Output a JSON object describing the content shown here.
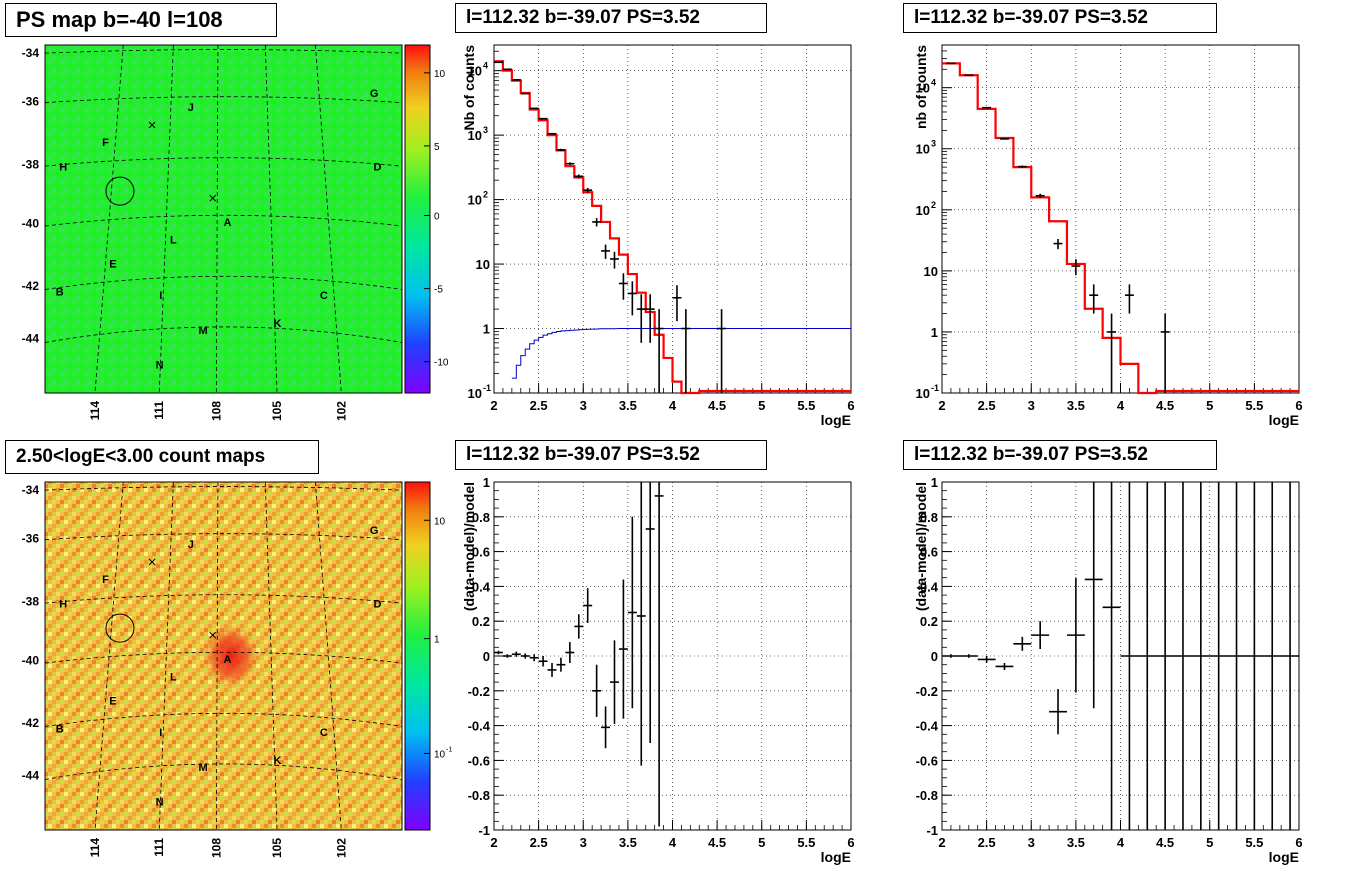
{
  "panel_titles": {
    "map_top": "PS map b=-40 l=108",
    "map_bottom": "2.50<logE<3.00 count maps",
    "spec1": "l=112.32 b=-39.07 PS=3.52",
    "spec2": "l=112.32 b=-39.07 PS=3.52",
    "res1": "l=112.32 b=-39.07 PS=3.52",
    "res2": "l=112.32 b=-39.07 PS=3.52"
  },
  "map_axes": {
    "lat_ticks": [
      "-34",
      "-36",
      "-38",
      "-40",
      "-42",
      "-44"
    ],
    "lon_ticks": [
      "114",
      "111",
      "108",
      "105",
      "102"
    ]
  },
  "source_labels": [
    "A",
    "B",
    "C",
    "D",
    "E",
    "F",
    "G",
    "H",
    "I",
    "J",
    "K",
    "L",
    "M",
    "N"
  ],
  "colorbars": {
    "top_ticks": [
      "10",
      "5",
      "0",
      "-5",
      "-10"
    ],
    "bottom_ticks": [
      "10",
      "1",
      "10",
      "-1"
    ]
  },
  "colors": {
    "ps_map_background": "#22f030",
    "count_map_background": "#f0c040",
    "model_line": "#ff0000",
    "acceptance_line": "#0000cc",
    "data_points": "#000000"
  },
  "chart_data": [
    {
      "id": "spec1",
      "type": "line",
      "title": "l=112.32 b=-39.07 PS=3.52",
      "xlabel": "logE",
      "ylabel": "Nb of counts",
      "xlim": [
        2,
        6
      ],
      "ylim": [
        0.1,
        25000
      ],
      "ylog": true,
      "grid": true,
      "xticks": [
        "2",
        "2.5",
        "3",
        "3.5",
        "4",
        "4.5",
        "5",
        "5.5",
        "6"
      ],
      "yticks": [
        {
          "v": 0.1,
          "t": "10",
          "e": "-1"
        },
        {
          "v": 1,
          "t": "1",
          "e": ""
        },
        {
          "v": 10,
          "t": "10",
          "e": ""
        },
        {
          "v": 100,
          "t": "10",
          "e": "2"
        },
        {
          "v": 1000,
          "t": "10",
          "e": "3"
        },
        {
          "v": 10000,
          "t": "10",
          "e": "4"
        }
      ],
      "series": [
        {
          "role": "model",
          "step_width": 0.1,
          "x": [
            2.0,
            2.1,
            2.2,
            2.3,
            2.4,
            2.5,
            2.6,
            2.7,
            2.8,
            2.9,
            3.0,
            3.1,
            3.2,
            3.3,
            3.4,
            3.5,
            3.6,
            3.7,
            3.8,
            3.9,
            4.0,
            4.1,
            4.2
          ],
          "y": [
            14000,
            10000,
            7000,
            4500,
            2500,
            1700,
            1000,
            580,
            330,
            220,
            130,
            80,
            45,
            25,
            14,
            7,
            3.6,
            1.8,
            0.8,
            0.35,
            0.15,
            0.1,
            0.1
          ]
        },
        {
          "role": "acceptance",
          "step_width": 0.05,
          "x": [
            2.2,
            2.25,
            2.3,
            2.35,
            2.4,
            2.45,
            2.5,
            2.55,
            2.6,
            2.65,
            2.7,
            2.75,
            2.8,
            2.85,
            2.9,
            2.95,
            3.0,
            3.1,
            3.2,
            3.3,
            3.4,
            3.5,
            3.6,
            3.8,
            4.0,
            4.5,
            5.0,
            5.5
          ],
          "y": [
            0.17,
            0.27,
            0.38,
            0.48,
            0.58,
            0.66,
            0.73,
            0.79,
            0.83,
            0.87,
            0.9,
            0.92,
            0.93,
            0.94,
            0.95,
            0.96,
            0.97,
            0.98,
            0.99,
            0.99,
            1,
            1,
            1,
            1,
            1,
            1,
            1,
            1
          ]
        },
        {
          "role": "data",
          "x": [
            2.05,
            2.15,
            2.25,
            2.35,
            2.45,
            2.55,
            2.65,
            2.75,
            2.85,
            2.95,
            3.05,
            3.15,
            3.25,
            3.35,
            3.45,
            3.55,
            3.65,
            3.75,
            3.85,
            4.05,
            4.15,
            4.55
          ],
          "y": [
            13500,
            10500,
            7200,
            4400,
            2600,
            1800,
            1050,
            590,
            360,
            230,
            140,
            45,
            16,
            12,
            5,
            3.5,
            2,
            2,
            1,
            3,
            1,
            1
          ],
          "yerr": [
            120,
            100,
            85,
            66,
            51,
            42,
            32,
            24,
            19,
            15,
            12,
            6.7,
            4,
            3.5,
            2.2,
            1.9,
            1.4,
            1.4,
            1,
            1.7,
            1,
            1
          ]
        }
      ]
    },
    {
      "id": "spec2",
      "type": "line",
      "title": "l=112.32 b=-39.07 PS=3.52",
      "xlabel": "logE",
      "ylabel": "nb of counts",
      "xlim": [
        2,
        6
      ],
      "ylim": [
        0.1,
        50000
      ],
      "ylog": true,
      "grid": true,
      "xticks": [
        "2",
        "2.5",
        "3",
        "3.5",
        "4",
        "4.5",
        "5",
        "5.5",
        "6"
      ],
      "yticks": [
        {
          "v": 0.1,
          "t": "10",
          "e": "-1"
        },
        {
          "v": 1,
          "t": "1",
          "e": ""
        },
        {
          "v": 10,
          "t": "10",
          "e": ""
        },
        {
          "v": 100,
          "t": "10",
          "e": "2"
        },
        {
          "v": 1000,
          "t": "10",
          "e": "3"
        },
        {
          "v": 10000,
          "t": "10",
          "e": "4"
        }
      ],
      "series": [
        {
          "role": "model",
          "step_width": 0.2,
          "x": [
            2.0,
            2.2,
            2.4,
            2.6,
            2.8,
            3.0,
            3.2,
            3.4,
            3.6,
            3.8,
            4.0,
            4.2
          ],
          "y": [
            25000,
            16000,
            4500,
            1500,
            500,
            160,
            65,
            13,
            2.4,
            0.8,
            0.3,
            0.1
          ]
        },
        {
          "role": "data",
          "x": [
            2.1,
            2.3,
            2.5,
            2.7,
            2.9,
            3.1,
            3.3,
            3.5,
            3.7,
            3.9,
            4.1,
            4.5
          ],
          "y": [
            25000,
            16000,
            4700,
            1450,
            510,
            170,
            28,
            12,
            4,
            1,
            4,
            1
          ],
          "yerr": [
            160,
            126,
            69,
            38,
            23,
            13,
            5.3,
            3.5,
            2,
            1,
            2,
            1
          ]
        }
      ]
    },
    {
      "id": "res1",
      "type": "scatter",
      "title": "l=112.32 b=-39.07 PS=3.52",
      "xlabel": "logE",
      "ylabel": "(data-model)/model",
      "xlim": [
        2,
        6
      ],
      "ylim": [
        -1,
        1
      ],
      "ylog": false,
      "grid": true,
      "xticks": [
        "2",
        "2.5",
        "3",
        "3.5",
        "4",
        "4.5",
        "5",
        "5.5",
        "6"
      ],
      "yticks_text": [
        "-1",
        "-0.8",
        "-0.6",
        "-0.4",
        "-0.2",
        "0",
        "0.2",
        "0.4",
        "0.6",
        "0.8",
        "1"
      ],
      "series": [
        {
          "role": "data",
          "half_width": 0.05,
          "x": [
            2.05,
            2.15,
            2.25,
            2.35,
            2.45,
            2.55,
            2.65,
            2.75,
            2.85,
            2.95,
            3.05,
            3.15,
            3.25,
            3.35,
            3.45,
            3.55,
            3.65,
            3.75,
            3.85
          ],
          "y": [
            0.02,
            0.0,
            0.01,
            0.0,
            -0.01,
            -0.03,
            -0.08,
            -0.05,
            0.02,
            0.17,
            0.29,
            -0.2,
            -0.41,
            -0.15,
            0.04,
            0.25,
            0.23,
            0.73,
            0.92
          ],
          "yerr": [
            0.01,
            0.01,
            0.015,
            0.015,
            0.02,
            0.03,
            0.04,
            0.04,
            0.06,
            0.07,
            0.1,
            0.15,
            0.12,
            0.24,
            0.4,
            0.55,
            0.86,
            1.23,
            1.9
          ]
        }
      ]
    },
    {
      "id": "res2",
      "type": "scatter",
      "title": "l=112.32 b=-39.07 PS=3.52",
      "xlabel": "logE",
      "ylabel": "(data-model)/model",
      "xlim": [
        2,
        6
      ],
      "ylim": [
        -1,
        1
      ],
      "ylog": false,
      "grid": true,
      "xticks": [
        "2",
        "2.5",
        "3",
        "3.5",
        "4",
        "4.5",
        "5",
        "5.5",
        "6"
      ],
      "yticks_text": [
        "-1",
        "-0.8",
        "-0.6",
        "-0.4",
        "-0.2",
        "0",
        "0.2",
        "0.4",
        "0.6",
        "0.8",
        "1"
      ],
      "series": [
        {
          "role": "data",
          "half_width": 0.1,
          "x": [
            2.1,
            2.3,
            2.5,
            2.7,
            2.9,
            3.1,
            3.3,
            3.5,
            3.7,
            3.9,
            4.1,
            4.3,
            4.5,
            4.7,
            4.9,
            5.1,
            5.3,
            5.5,
            5.7,
            5.9
          ],
          "y": [
            0.0,
            0.0,
            -0.02,
            -0.06,
            0.07,
            0.12,
            -0.32,
            0.12,
            0.44,
            0.28,
            0,
            0,
            0,
            0,
            0,
            0,
            0,
            0,
            0,
            0
          ],
          "yerr": [
            0.01,
            0.01,
            0.02,
            0.02,
            0.04,
            0.08,
            0.13,
            0.33,
            0.74,
            1.5,
            5,
            5,
            5,
            5,
            5,
            5,
            5,
            5,
            5,
            5
          ]
        }
      ]
    }
  ]
}
